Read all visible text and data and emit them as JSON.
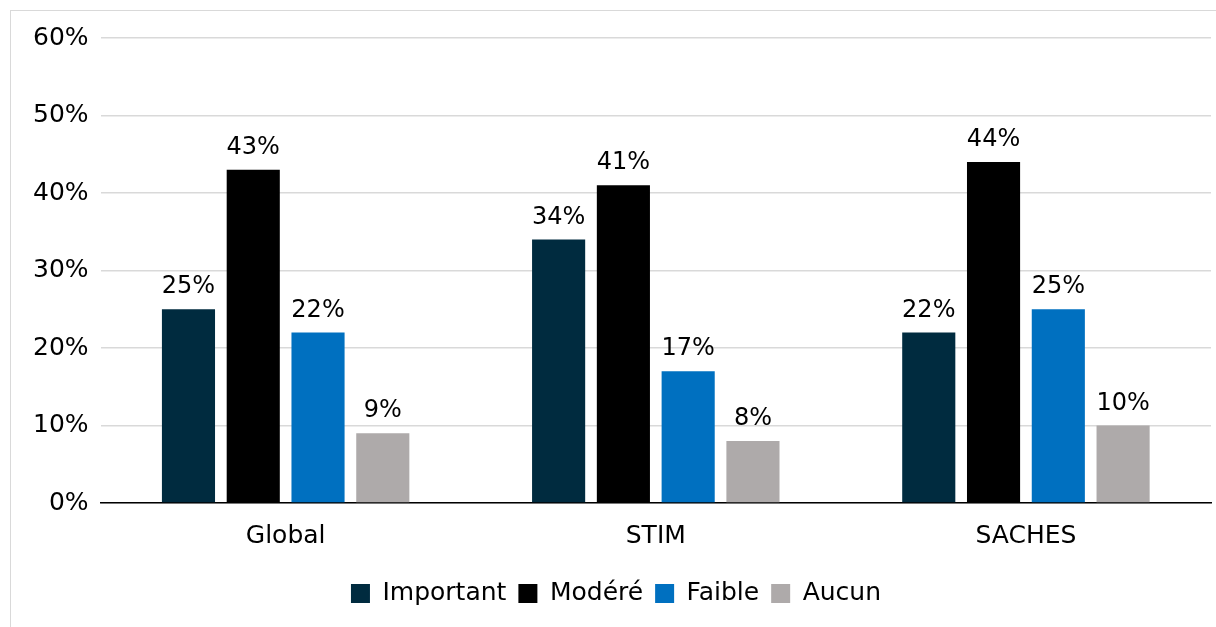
{
  "chart_data": {
    "type": "bar",
    "categories": [
      "Global",
      "STIM",
      "SACHES"
    ],
    "series": [
      {
        "name": "Important",
        "color": "#002b3f",
        "values": [
          25,
          34,
          22
        ],
        "value_labels": [
          "25%",
          "34%",
          "22%"
        ]
      },
      {
        "name": "Modéré",
        "color": "#000000",
        "values": [
          43,
          41,
          44
        ],
        "value_labels": [
          "43%",
          "41%",
          "44%"
        ]
      },
      {
        "name": "Faible",
        "color": "#0070c0",
        "values": [
          22,
          17,
          25
        ],
        "value_labels": [
          "22%",
          "17%",
          "25%"
        ]
      },
      {
        "name": "Aucun",
        "color": "#aeaaaa",
        "values": [
          9,
          8,
          10
        ],
        "value_labels": [
          "9%",
          "8%",
          "10%"
        ]
      }
    ],
    "ylim": [
      0,
      60
    ],
    "yticks": [
      {
        "value": 0,
        "label": "0%"
      },
      {
        "value": 10,
        "label": "10%"
      },
      {
        "value": 20,
        "label": "20%"
      },
      {
        "value": 30,
        "label": "30%"
      },
      {
        "value": 40,
        "label": "40%"
      },
      {
        "value": 50,
        "label": "50%"
      },
      {
        "value": 60,
        "label": "60%"
      }
    ],
    "grid": "y",
    "legend": "bottom"
  }
}
